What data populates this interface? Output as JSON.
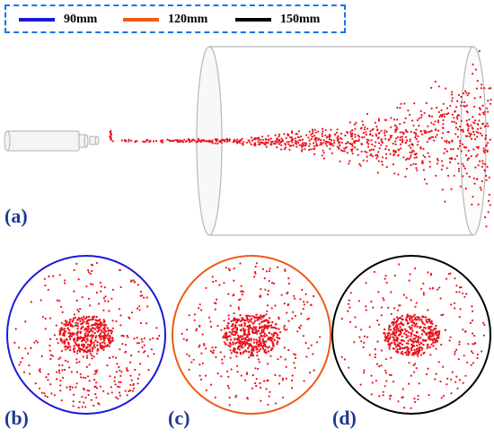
{
  "legend": {
    "items": [
      {
        "label": "90mm",
        "color": "#1a1ad6"
      },
      {
        "label": "120mm",
        "color": "#f05a14"
      },
      {
        "label": "150mm",
        "color": "#000000"
      }
    ]
  },
  "panels": {
    "a": "(a)",
    "b": "(b)",
    "c": "(c)",
    "d": "(d)"
  },
  "colors": {
    "particle": "#e8141e",
    "cylinder_outline": "#b8b8b8",
    "panel_label": "#1f3b8f",
    "legend_border": "#1a73e8"
  }
}
